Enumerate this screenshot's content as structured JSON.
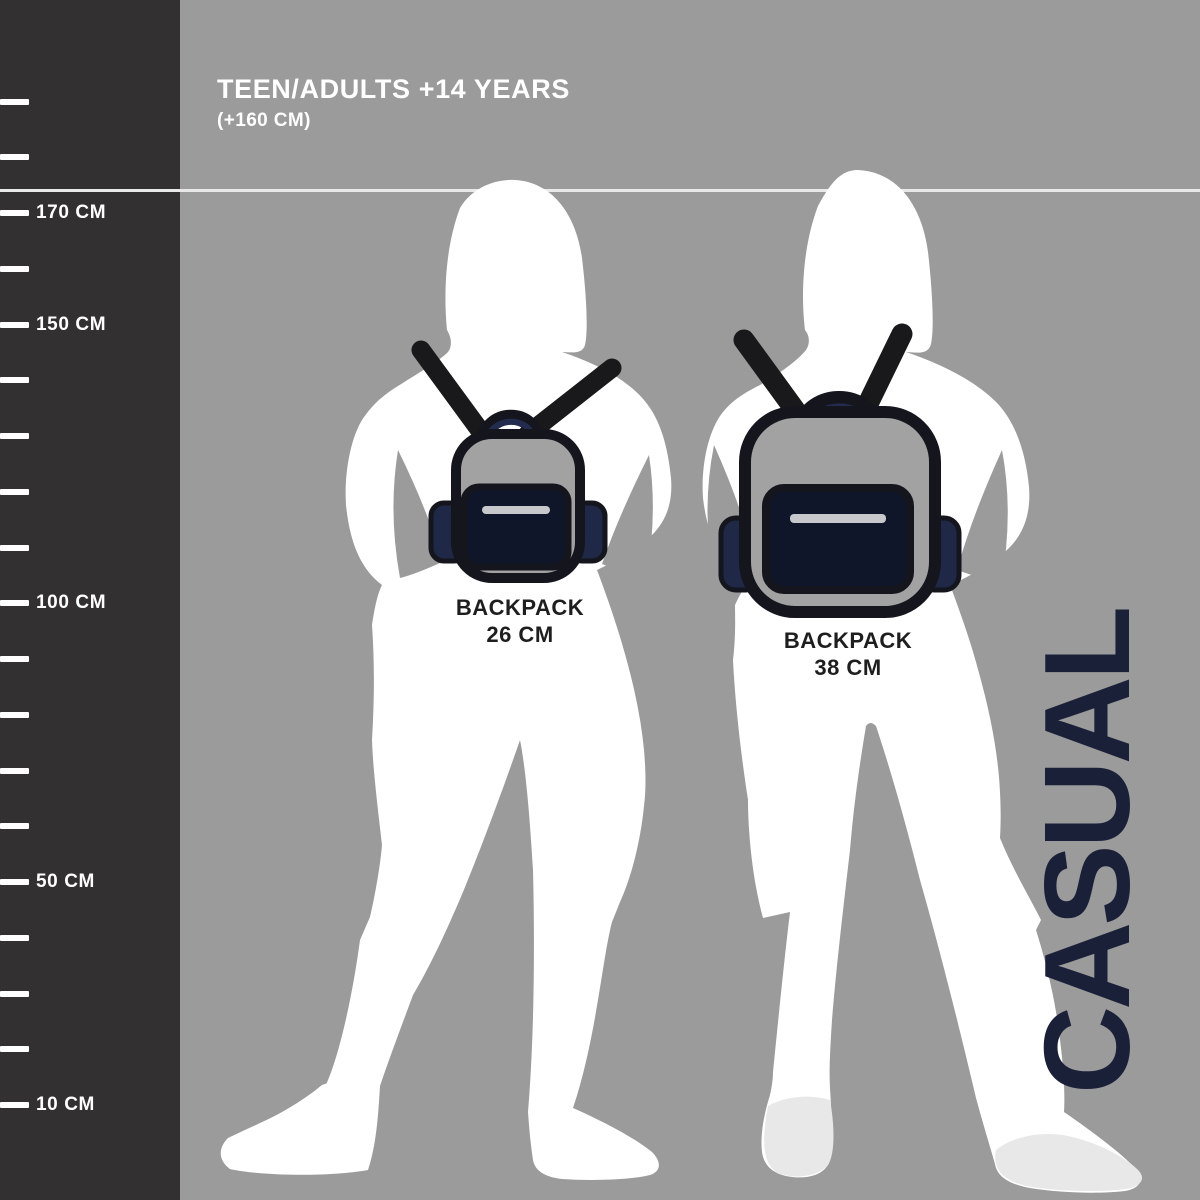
{
  "header": {
    "title": "TEEN/ADULTS +14 YEARS",
    "subtitle": "(+160 CM)"
  },
  "ruler": {
    "unit": "CM",
    "ticks": [
      {
        "cm": 190,
        "label": ""
      },
      {
        "cm": 180,
        "label": ""
      },
      {
        "cm": 170,
        "label": "170 CM"
      },
      {
        "cm": 160,
        "label": ""
      },
      {
        "cm": 150,
        "label": "150 CM"
      },
      {
        "cm": 140,
        "label": ""
      },
      {
        "cm": 130,
        "label": ""
      },
      {
        "cm": 120,
        "label": ""
      },
      {
        "cm": 110,
        "label": ""
      },
      {
        "cm": 100,
        "label": "100 CM"
      },
      {
        "cm": 90,
        "label": ""
      },
      {
        "cm": 80,
        "label": ""
      },
      {
        "cm": 70,
        "label": ""
      },
      {
        "cm": 60,
        "label": ""
      },
      {
        "cm": 50,
        "label": "50 CM"
      },
      {
        "cm": 40,
        "label": ""
      },
      {
        "cm": 30,
        "label": ""
      },
      {
        "cm": 20,
        "label": ""
      },
      {
        "cm": 10,
        "label": "10 CM"
      }
    ]
  },
  "figures": [
    {
      "backpack_label_line1": "BACKPACK",
      "backpack_label_line2": "26 CM"
    },
    {
      "backpack_label_line1": "BACKPACK",
      "backpack_label_line2": "38 CM"
    }
  ],
  "category_label": "CASUAL",
  "colors": {
    "background": "#9b9b9b",
    "ruler_background": "#323031",
    "tick_white": "#ffffff",
    "height_line": "#e9e9e9",
    "silhouette_white": "#ffffff",
    "silhouette_shaded_feet": "#e8e8e8",
    "backpack_body_gray": "#a2a2a2",
    "backpack_outline": "#15151d",
    "backpack_pocket_navy": "#0f1629",
    "backpack_trim_navy": "#1f2847",
    "strap_black": "#19191b",
    "zipper_gray": "#c6c8cb",
    "label_text": "#1e1e1e",
    "accent_navy": "#1a2038"
  }
}
